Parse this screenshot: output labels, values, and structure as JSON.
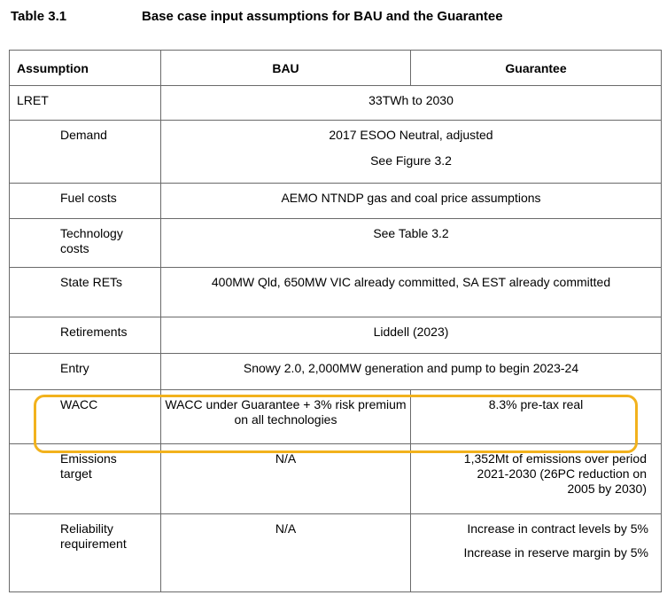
{
  "caption": {
    "number": "Table 3.1",
    "title": "Base case input assumptions for BAU and the Guarantee"
  },
  "headers": {
    "assumption": "Assumption",
    "bau": "BAU",
    "guarantee": "Guarantee"
  },
  "rows": {
    "lret": {
      "label": "LRET",
      "value": "33TWh to 2030"
    },
    "demand": {
      "label": "Demand",
      "line1": "2017 ESOO Neutral, adjusted",
      "line2": "See Figure 3.2"
    },
    "fuel": {
      "label": "Fuel costs",
      "value": "AEMO NTNDP gas and coal price assumptions"
    },
    "tech": {
      "label": "Technology costs",
      "value": "See Table 3.2"
    },
    "state": {
      "label": "State RETs",
      "value": "400MW Qld, 650MW VIC already committed, SA EST already committed"
    },
    "retire": {
      "label": "Retirements",
      "value": "Liddell (2023)"
    },
    "entry": {
      "label": "Entry",
      "value": "Snowy 2.0, 2,000MW generation and pump to begin 2023-24"
    },
    "wacc": {
      "label": "WACC",
      "bau": "WACC under Guarantee + 3% risk premium on all technologies",
      "guarantee": "8.3% pre-tax real"
    },
    "emissions": {
      "label": "Emissions target",
      "bau": "N/A",
      "guarantee": "1,352Mt of emissions over period 2021-2030 (26PC reduction on 2005 by 2030)"
    },
    "reliability": {
      "label": "Reliability requirement",
      "bau": "N/A",
      "guarantee1": "Increase in contract levels by 5%",
      "guarantee2": "Increase in reserve margin by 5%"
    }
  },
  "highlight_color": "#f2b21d"
}
